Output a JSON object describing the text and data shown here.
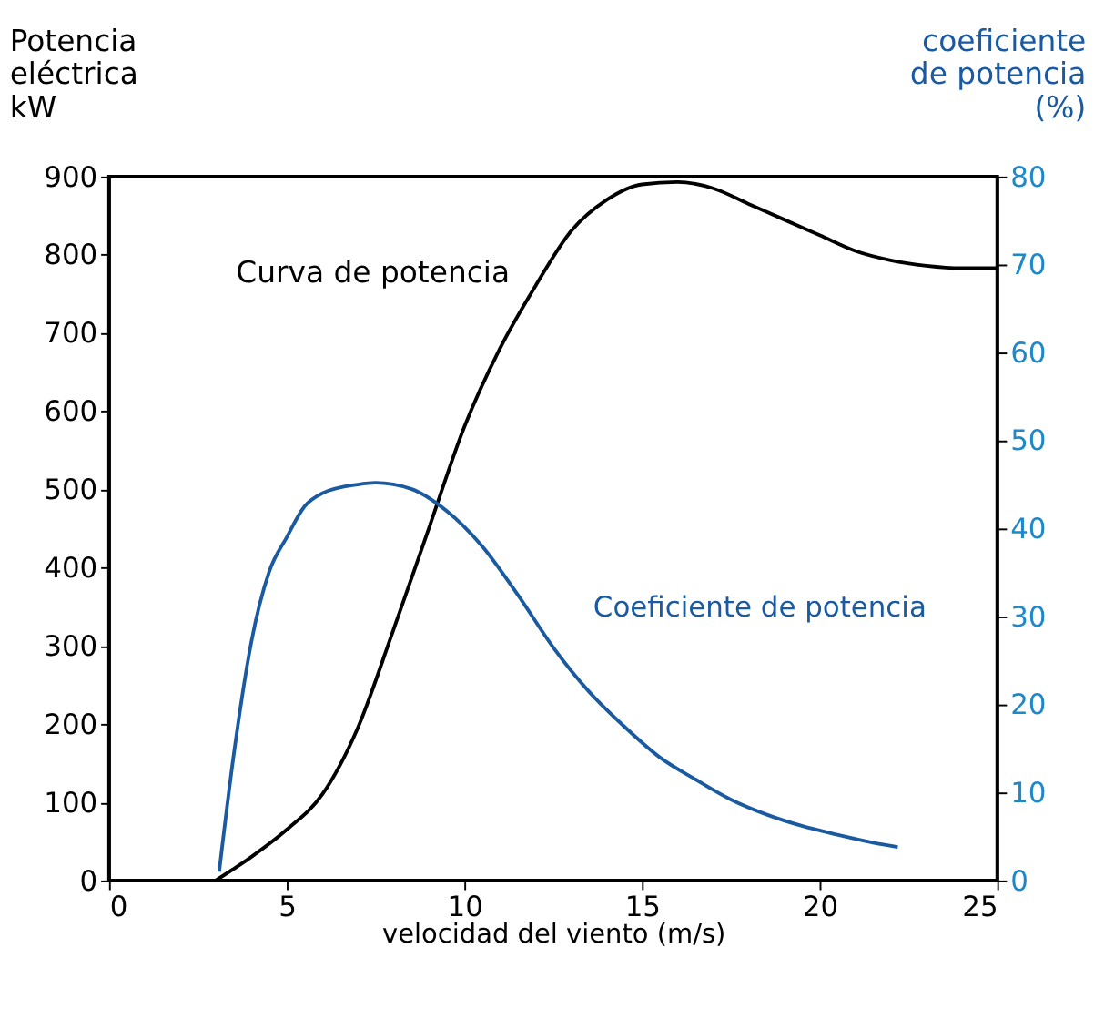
{
  "chart_data": {
    "type": "line",
    "xlabel": "velocidad del viento (m/s)",
    "ylabel": "Potencia\neléctrica\nkW",
    "y2label": "coeficiente\nde potencia\n(%)",
    "xlim": [
      0,
      25
    ],
    "xticks": [
      0,
      5,
      10,
      15,
      20,
      25
    ],
    "ylim": [
      0,
      900
    ],
    "yticks": [
      0,
      100,
      200,
      300,
      400,
      500,
      600,
      700,
      800,
      900
    ],
    "y2lim": [
      0,
      80
    ],
    "y2ticks": [
      0,
      10,
      20,
      30,
      40,
      50,
      60,
      70,
      80
    ],
    "grid": false,
    "series": [
      {
        "name": "Curva de potencia",
        "color": "#000000",
        "x": [
          3,
          4,
          5,
          6,
          7,
          8,
          9,
          10,
          11,
          12,
          13,
          14,
          15,
          16,
          17,
          18,
          19,
          20,
          21,
          22,
          23,
          24,
          25
        ],
        "values": [
          0,
          30,
          65,
          110,
          195,
          320,
          450,
          580,
          680,
          760,
          830,
          870,
          890,
          893,
          885,
          865,
          845,
          825,
          805,
          793,
          786,
          783,
          783
        ]
      },
      {
        "name": "Coeficiente de potencia",
        "color": "#1a5aa0",
        "axis": "y2",
        "x": [
          3.1,
          3.5,
          4,
          4.5,
          5,
          5.5,
          6,
          7,
          7.5,
          8.5,
          9.5,
          10.5,
          11.5,
          12.5,
          13.5,
          14.5,
          15.5,
          16.5,
          17.5,
          18.5,
          19.5,
          20.5,
          21.5,
          22.2
        ],
        "values": [
          1,
          14,
          27,
          35,
          39,
          42.5,
          44,
          45,
          45.2,
          44.5,
          42,
          38,
          32.5,
          26.5,
          21.5,
          17.5,
          14,
          11.5,
          9.2,
          7.5,
          6.2,
          5.2,
          4.3,
          3.8
        ]
      }
    ]
  }
}
